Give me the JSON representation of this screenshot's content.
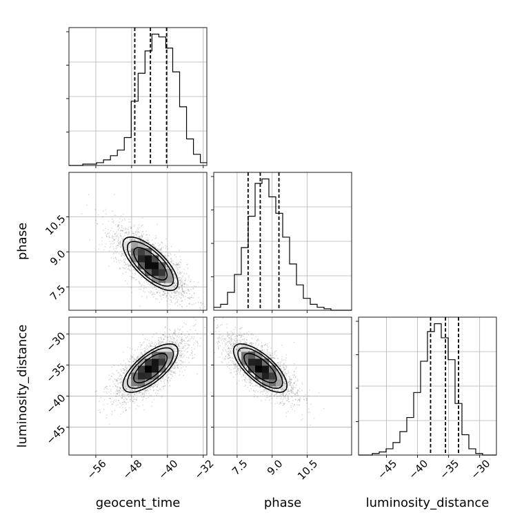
{
  "chart_data": {
    "type": "corner",
    "parameters": [
      {
        "name": "geocent_time",
        "range": [
          -62,
          -31.2
        ],
        "ticks": [
          -56,
          -48,
          -40,
          -32
        ],
        "tick_labels": [
          "−56",
          "−48",
          "−40",
          "−32"
        ]
      },
      {
        "name": "phase",
        "range": [
          6.5,
          12.4
        ],
        "ticks": [
          7.5,
          9.0,
          10.5
        ],
        "tick_labels": [
          "7.5",
          "9.0",
          "10.5"
        ]
      },
      {
        "name": "luminosity_distance",
        "range": [
          -49.5,
          -27.3
        ],
        "ticks": [
          -45,
          -40,
          -35,
          -30
        ],
        "tick_labels": [
          "−45",
          "−40",
          "−35",
          "−30"
        ]
      }
    ],
    "quantiles": [
      [
        -47.3,
        -43.8,
        -40.2
      ],
      [
        7.97,
        8.49,
        9.29
      ],
      [
        -37.9,
        -35.5,
        -33.4
      ]
    ],
    "histograms": [
      {
        "edges_start": -62,
        "bin_width": 1.545,
        "counts": [
          0,
          0,
          1,
          1,
          2,
          4,
          7,
          11,
          20,
          46,
          66,
          82,
          94,
          92,
          84,
          67,
          42,
          19,
          8,
          2
        ]
      },
      {
        "edges_start": 6.5,
        "bin_width": 0.295,
        "counts": [
          2,
          4,
          12,
          24,
          42,
          63,
          85,
          88,
          76,
          65,
          49,
          31,
          17,
          8,
          4,
          2,
          1,
          0,
          0,
          0
        ]
      },
      {
        "edges_start": -49.5,
        "bin_width": 1.11,
        "counts": [
          0,
          0,
          1,
          2,
          4,
          8,
          15,
          24,
          40,
          60,
          79,
          84,
          75,
          61,
          33,
          13,
          4,
          1,
          0,
          0
        ]
      }
    ],
    "grid": true
  }
}
